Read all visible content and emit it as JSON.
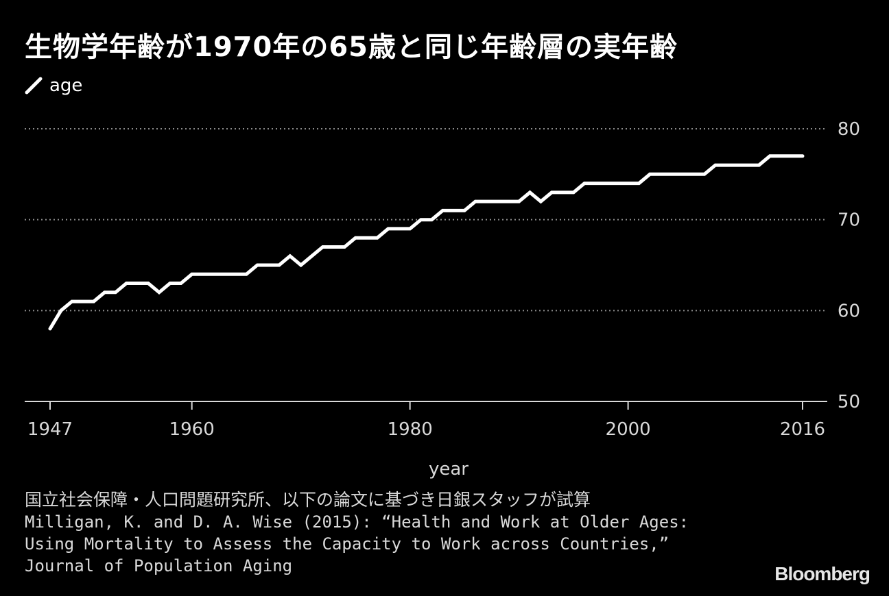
{
  "title": "生物学年齢が1970年の65歳と同じ年齢層の実年齢",
  "legend": {
    "label": "age",
    "color": "#ffffff"
  },
  "source": {
    "line1": "国立社会保障・人口問題研究所、以下の論文に基づき日銀スタッフが試算",
    "line2": "Milligan, K. and D. A. Wise (2015): “Health and Work at Older Ages: Using Mortality to Assess the Capacity to Work across Countries,” Journal of Population Aging"
  },
  "logo": "Bloomberg",
  "chart_data": {
    "type": "line",
    "xlabel": "year",
    "ylabel": "",
    "xlim": [
      1947,
      2016
    ],
    "ylim": [
      50,
      80
    ],
    "x_ticks": [
      1947,
      1960,
      1980,
      2000,
      2016
    ],
    "y_ticks": [
      50,
      60,
      70,
      80
    ],
    "grid": "horizontal dotted",
    "y_axis_side": "right",
    "series": [
      {
        "name": "age",
        "color": "#ffffff",
        "x": [
          1947,
          1948,
          1949,
          1950,
          1951,
          1952,
          1953,
          1954,
          1955,
          1956,
          1957,
          1958,
          1959,
          1960,
          1961,
          1962,
          1963,
          1964,
          1965,
          1966,
          1967,
          1968,
          1969,
          1970,
          1971,
          1972,
          1973,
          1974,
          1975,
          1976,
          1977,
          1978,
          1979,
          1980,
          1981,
          1982,
          1983,
          1984,
          1985,
          1986,
          1987,
          1988,
          1989,
          1990,
          1991,
          1992,
          1993,
          1994,
          1995,
          1996,
          1997,
          1998,
          1999,
          2000,
          2001,
          2002,
          2003,
          2004,
          2005,
          2006,
          2007,
          2008,
          2009,
          2010,
          2011,
          2012,
          2013,
          2014,
          2015,
          2016
        ],
        "values": [
          58,
          60,
          61,
          61,
          61,
          62,
          62,
          63,
          63,
          63,
          62,
          63,
          63,
          64,
          64,
          64,
          64,
          64,
          64,
          65,
          65,
          65,
          66,
          65,
          66,
          67,
          67,
          67,
          68,
          68,
          68,
          69,
          69,
          69,
          70,
          70,
          71,
          71,
          71,
          72,
          72,
          72,
          72,
          72,
          73,
          72,
          73,
          73,
          73,
          74,
          74,
          74,
          74,
          74,
          74,
          75,
          75,
          75,
          75,
          75,
          75,
          76,
          76,
          76,
          76,
          76,
          77,
          77,
          77,
          77
        ]
      }
    ]
  }
}
